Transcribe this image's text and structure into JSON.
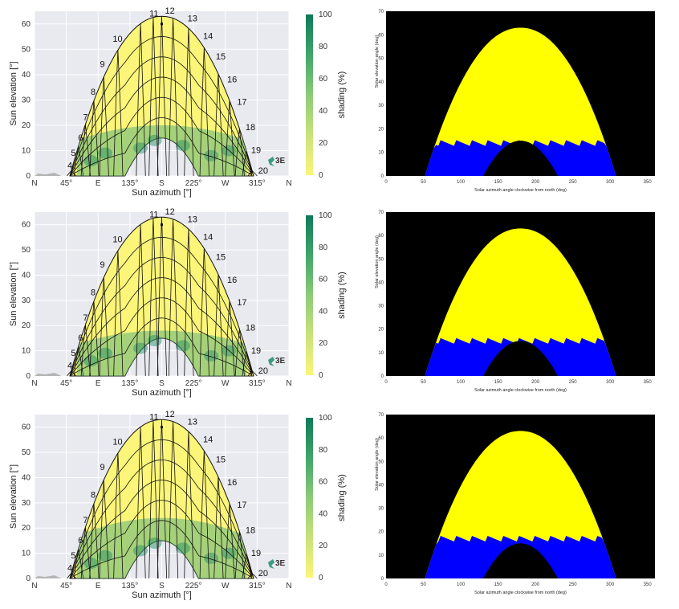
{
  "chart_data": [
    {
      "type": "heatmap",
      "panel": "left",
      "row": 1,
      "xlabel": "Sun azimuth [°]",
      "ylabel": "Sun elevation [°]",
      "xticks": [
        "N",
        "45°",
        "E",
        "135°",
        "S",
        "225°",
        "W",
        "315°",
        "N"
      ],
      "xtick_values": [
        0,
        45,
        90,
        135,
        180,
        225,
        270,
        315,
        360
      ],
      "yticks": [
        0,
        10,
        20,
        30,
        40,
        50,
        60
      ],
      "ylim": [
        0,
        65
      ],
      "xlim": [
        0,
        360
      ],
      "hour_labels": [
        "4",
        "5",
        "6",
        "7",
        "8",
        "9",
        "10",
        "11",
        "12",
        "13",
        "14",
        "15",
        "16",
        "17",
        "18",
        "19",
        "20"
      ],
      "colorbar": {
        "label": "shading (%)",
        "ticks": [
          0,
          20,
          40,
          60,
          80,
          100
        ],
        "min_color": "#fbf57a",
        "max_color": "#0f7a58"
      },
      "logo": "3E",
      "sun_path_max_elevation": 63,
      "sun_path_min_elevation": 15,
      "shading_band_top": 20
    },
    {
      "type": "heatmap",
      "panel": "right",
      "row": 1,
      "xlabel": "Solar azimuth angle clockwise from north (deg)",
      "ylabel": "Solar elevation angle (deg)",
      "xticks": [
        "0",
        "50",
        "100",
        "150",
        "200",
        "250",
        "300",
        "350"
      ],
      "yticks": [
        "0",
        "10",
        "20",
        "30",
        "40",
        "50",
        "60",
        "70"
      ],
      "xlim": [
        0,
        360
      ],
      "ylim": [
        0,
        70
      ],
      "colors": {
        "background": "#000000",
        "sun": "#ffff00",
        "shade": "#0000ff"
      },
      "sun_path_max_elevation": 63,
      "blue_band_top": 14
    },
    {
      "type": "heatmap",
      "panel": "left",
      "row": 2,
      "xlabel": "Sun azimuth [°]",
      "ylabel": "Sun elevation [°]",
      "xticks": [
        "N",
        "45°",
        "E",
        "135°",
        "S",
        "225°",
        "W",
        "315°",
        "N"
      ],
      "xtick_values": [
        0,
        45,
        90,
        135,
        180,
        225,
        270,
        315,
        360
      ],
      "yticks": [
        0,
        10,
        20,
        30,
        40,
        50,
        60
      ],
      "ylim": [
        0,
        65
      ],
      "xlim": [
        0,
        360
      ],
      "hour_labels": [
        "4",
        "5",
        "6",
        "7",
        "8",
        "9",
        "10",
        "11",
        "12",
        "13",
        "14",
        "15",
        "16",
        "17",
        "18",
        "19",
        "20"
      ],
      "colorbar": {
        "label": "shading (%)",
        "ticks": [
          0,
          20,
          40,
          60,
          80,
          100
        ],
        "min_color": "#fbf57a",
        "max_color": "#0f7a58"
      },
      "logo": "3E",
      "sun_path_max_elevation": 63,
      "sun_path_min_elevation": 15,
      "shading_band_top": 18
    },
    {
      "type": "heatmap",
      "panel": "right",
      "row": 2,
      "xlabel": "Solar azimuth angle clockwise from north (deg)",
      "ylabel": "Solar elevation angle (deg)",
      "xticks": [
        "0",
        "50",
        "100",
        "150",
        "200",
        "250",
        "300",
        "350"
      ],
      "yticks": [
        "0",
        "10",
        "20",
        "30",
        "40",
        "50",
        "60",
        "70"
      ],
      "xlim": [
        0,
        360
      ],
      "ylim": [
        0,
        70
      ],
      "colors": {
        "background": "#000000",
        "sun": "#ffff00",
        "shade": "#0000ff"
      },
      "sun_path_max_elevation": 63,
      "blue_band_top": 15
    },
    {
      "type": "heatmap",
      "panel": "left",
      "row": 3,
      "xlabel": "Sun azimuth [°]",
      "ylabel": "Sun elevation [°]",
      "xticks": [
        "N",
        "45°",
        "E",
        "135°",
        "S",
        "225°",
        "W",
        "315°",
        "N"
      ],
      "xtick_values": [
        0,
        45,
        90,
        135,
        180,
        225,
        270,
        315,
        360
      ],
      "yticks": [
        0,
        10,
        20,
        30,
        40,
        50,
        60
      ],
      "ylim": [
        0,
        65
      ],
      "xlim": [
        0,
        360
      ],
      "hour_labels": [
        "4",
        "5",
        "6",
        "7",
        "8",
        "9",
        "10",
        "11",
        "12",
        "13",
        "14",
        "15",
        "16",
        "17",
        "18",
        "19",
        "20"
      ],
      "colorbar": {
        "label": "shading (%)",
        "ticks": [
          0,
          20,
          40,
          60,
          80,
          100
        ],
        "min_color": "#fbf57a",
        "max_color": "#0f7a58"
      },
      "logo": "3E",
      "sun_path_max_elevation": 63,
      "sun_path_min_elevation": 15,
      "shading_band_top": 24
    },
    {
      "type": "heatmap",
      "panel": "right",
      "row": 3,
      "xlabel": "Solar azimuth angle clockwise from north (deg)",
      "ylabel": "Solar elevation angle (deg)",
      "xticks": [
        "0",
        "50",
        "100",
        "150",
        "200",
        "250",
        "300",
        "350"
      ],
      "yticks": [
        "0",
        "10",
        "20",
        "30",
        "40",
        "50",
        "60",
        "70"
      ],
      "xlim": [
        0,
        360
      ],
      "ylim": [
        0,
        70
      ],
      "colors": {
        "background": "#000000",
        "sun": "#ffff00",
        "shade": "#0000ff"
      },
      "sun_path_max_elevation": 63,
      "blue_band_top": 17
    }
  ]
}
